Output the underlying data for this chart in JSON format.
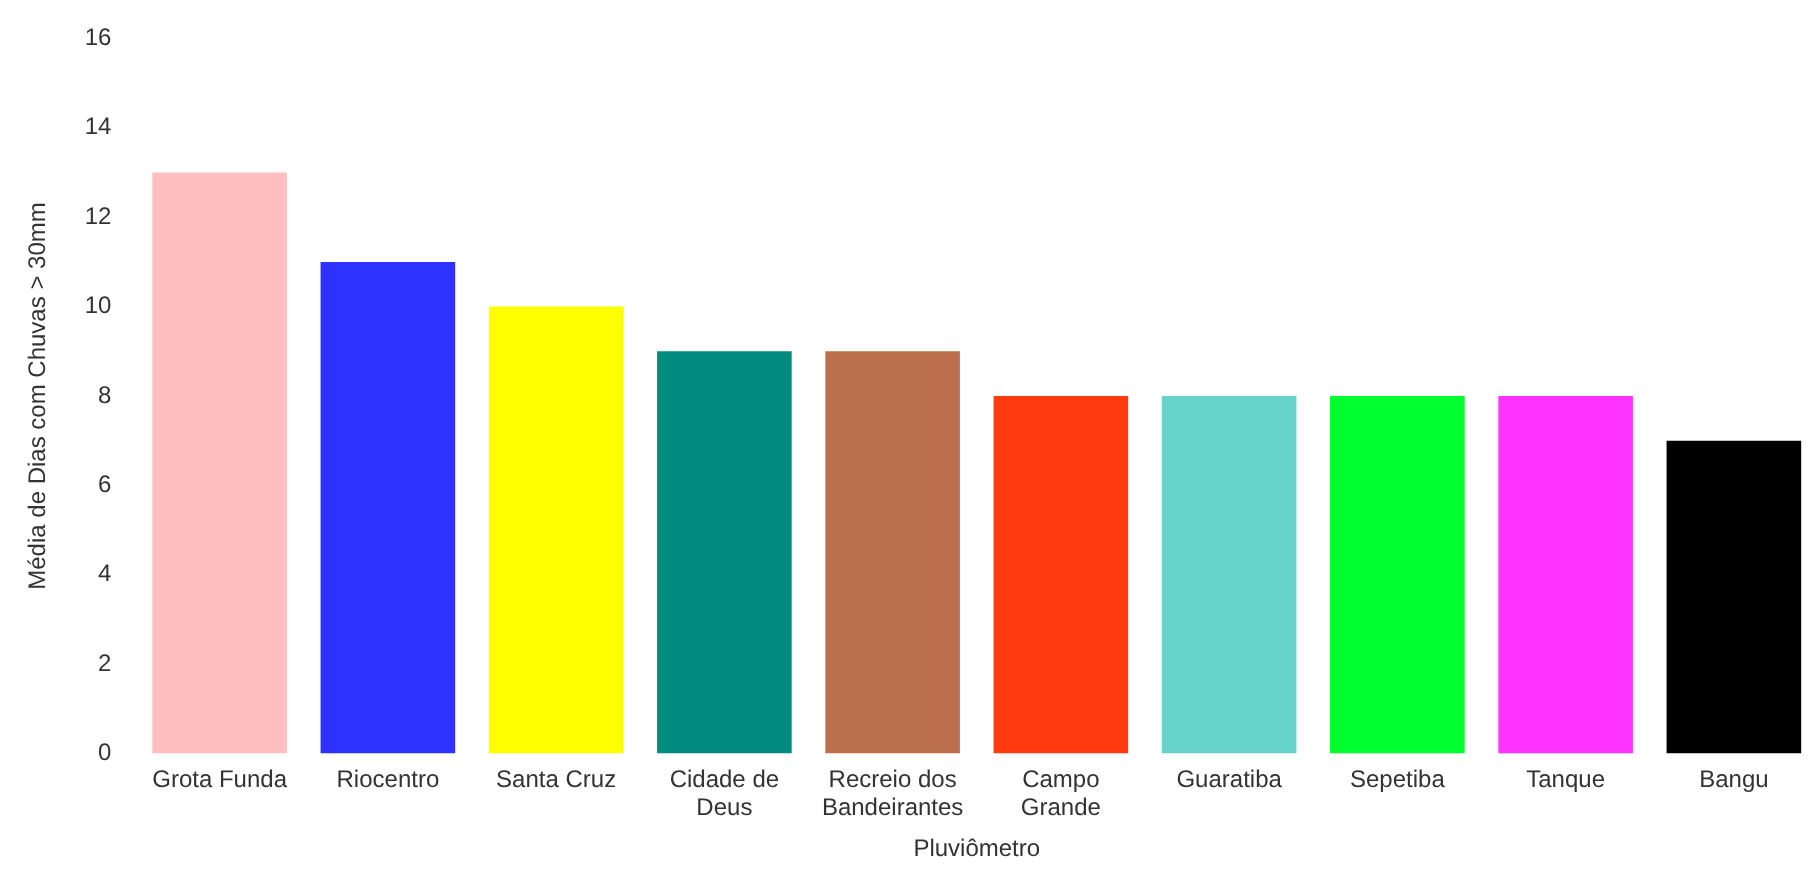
{
  "chart_data": {
    "type": "bar",
    "xlabel": "Pluviômetro",
    "ylabel": "Média de Dias com Chuvas > 30mm",
    "categories": [
      "Grota Funda",
      "Riocentro",
      "Santa Cruz",
      "Cidade de Deus",
      "Recreio dos Bandeirantes",
      "Campo Grande",
      "Guaratiba",
      "Sepetiba",
      "Tanque",
      "Bangu"
    ],
    "values": [
      13,
      11,
      10,
      9,
      9,
      8,
      8,
      8,
      8,
      7
    ],
    "colors": [
      "#ffbfbf",
      "#2e32ff",
      "#ffff00",
      "#008b7f",
      "#bb6f4d",
      "#ff3a0f",
      "#66d4cb",
      "#00ff2e",
      "#ff33ff",
      "#000000"
    ],
    "ylim": [
      0,
      16
    ],
    "yticks": [
      0,
      2,
      4,
      6,
      8,
      10,
      12,
      14,
      16
    ],
    "grid": false,
    "legend": false
  }
}
